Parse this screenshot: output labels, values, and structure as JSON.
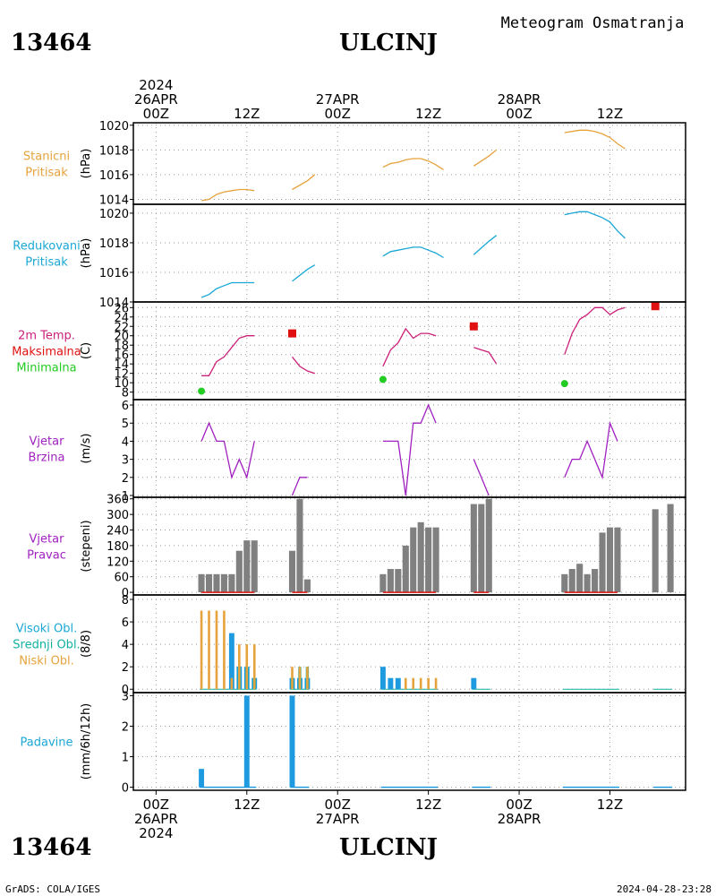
{
  "header": {
    "station_id": "13464",
    "station_name": "ULCINJ",
    "subtitle": "Meteogram Osmatranja",
    "footer_left": "GrADS: COLA/IGES",
    "footer_right": "2024-04-28-23:28"
  },
  "time_axis": {
    "ticks": [
      {
        "h": 0,
        "lines": [
          "2024",
          "26APR",
          "00Z"
        ]
      },
      {
        "h": 12,
        "lines": [
          "12Z"
        ]
      },
      {
        "h": 24,
        "lines": [
          "27APR",
          "00Z"
        ]
      },
      {
        "h": 36,
        "lines": [
          "12Z"
        ]
      },
      {
        "h": 48,
        "lines": [
          "28APR",
          "00Z"
        ]
      },
      {
        "h": 60,
        "lines": [
          "12Z"
        ]
      }
    ],
    "bottom_ticks": [
      {
        "h": 0,
        "lines": [
          "00Z",
          "26APR",
          "2024"
        ]
      },
      {
        "h": 12,
        "lines": [
          "12Z"
        ]
      },
      {
        "h": 24,
        "lines": [
          "00Z",
          "27APR"
        ]
      },
      {
        "h": 36,
        "lines": [
          "12Z"
        ]
      },
      {
        "h": 48,
        "lines": [
          "00Z",
          "28APR"
        ]
      },
      {
        "h": 60,
        "lines": [
          "12Z"
        ]
      }
    ],
    "range_hours": [
      -3,
      70
    ]
  },
  "colors": {
    "orange": "#e6a23c",
    "cyan": "#1aa7d6",
    "magenta": "#cc1f79",
    "red": "#e01010",
    "green": "#22cc22",
    "purple": "#a020c0",
    "gray": "#808080",
    "teal": "#10b0a0",
    "blue": "#1e9be0",
    "grid": "#999999"
  },
  "chart_data": [
    {
      "type": "line",
      "labels": [
        "Stanicni",
        "Pritisak"
      ],
      "ylabel": "(hPa)",
      "ylim": [
        1013.6,
        1020.2
      ],
      "yticks": [
        1014,
        1016,
        1018,
        1020
      ],
      "series": [
        {
          "color_key": "orange",
          "segments": [
            [
              [
                6,
                1013.9
              ],
              [
                7,
                1014.0
              ],
              [
                8,
                1014.4
              ],
              [
                9,
                1014.6
              ],
              [
                10,
                1014.7
              ],
              [
                11,
                1014.8
              ],
              [
                12,
                1014.8
              ],
              [
                13,
                1014.7
              ]
            ],
            [
              [
                18,
                1014.8
              ],
              [
                20,
                1015.5
              ],
              [
                21,
                1016.0
              ]
            ],
            [
              [
                30,
                1016.6
              ],
              [
                31,
                1016.9
              ],
              [
                32,
                1017.0
              ],
              [
                33,
                1017.2
              ],
              [
                34,
                1017.3
              ],
              [
                35,
                1017.3
              ],
              [
                36,
                1017.1
              ],
              [
                37,
                1016.8
              ],
              [
                38,
                1016.4
              ]
            ],
            [
              [
                42,
                1016.7
              ],
              [
                44,
                1017.5
              ],
              [
                45,
                1018.0
              ]
            ],
            [
              [
                54,
                1019.4
              ],
              [
                55,
                1019.5
              ],
              [
                56,
                1019.6
              ],
              [
                57,
                1019.6
              ],
              [
                58,
                1019.5
              ],
              [
                59,
                1019.3
              ],
              [
                60,
                1019.0
              ],
              [
                61,
                1018.5
              ],
              [
                62,
                1018.1
              ]
            ]
          ]
        }
      ]
    },
    {
      "type": "line",
      "labels": [
        "Redukovani",
        "Pritisak"
      ],
      "ylabel": "(hPa)",
      "ylim": [
        1014.0,
        1020.6
      ],
      "yticks": [
        1014,
        1016,
        1018,
        1020
      ],
      "series": [
        {
          "color_key": "cyan",
          "segments": [
            [
              [
                6,
                1014.3
              ],
              [
                7,
                1014.5
              ],
              [
                8,
                1014.9
              ],
              [
                9,
                1015.1
              ],
              [
                10,
                1015.3
              ],
              [
                11,
                1015.3
              ],
              [
                12,
                1015.3
              ],
              [
                13,
                1015.3
              ]
            ],
            [
              [
                18,
                1015.4
              ],
              [
                20,
                1016.2
              ],
              [
                21,
                1016.5
              ]
            ],
            [
              [
                30,
                1017.1
              ],
              [
                31,
                1017.4
              ],
              [
                32,
                1017.5
              ],
              [
                33,
                1017.6
              ],
              [
                34,
                1017.7
              ],
              [
                35,
                1017.7
              ],
              [
                36,
                1017.5
              ],
              [
                37,
                1017.3
              ],
              [
                38,
                1017.0
              ]
            ],
            [
              [
                42,
                1017.2
              ],
              [
                44,
                1018.1
              ],
              [
                45,
                1018.5
              ]
            ],
            [
              [
                54,
                1019.9
              ],
              [
                55,
                1020.0
              ],
              [
                56,
                1020.1
              ],
              [
                57,
                1020.1
              ],
              [
                58,
                1019.9
              ],
              [
                59,
                1019.7
              ],
              [
                60,
                1019.4
              ],
              [
                61,
                1018.8
              ],
              [
                62,
                1018.3
              ]
            ]
          ]
        }
      ]
    },
    {
      "type": "line",
      "labels": [
        "2m Temp.",
        "Maksimalna",
        "Minimalna"
      ],
      "label_colors": [
        "magenta",
        "red",
        "green"
      ],
      "ylabel": "(C)",
      "ylim": [
        6.4,
        27.2
      ],
      "yticks": [
        8,
        10,
        12,
        14,
        16,
        18,
        20,
        22,
        24,
        26
      ],
      "series": [
        {
          "color_key": "magenta",
          "segments": [
            [
              [
                6,
                11.5
              ],
              [
                7,
                11.5
              ],
              [
                8,
                14.5
              ],
              [
                9,
                15.5
              ],
              [
                10,
                17.5
              ],
              [
                11,
                19.5
              ],
              [
                12,
                20.0
              ],
              [
                13,
                20.0
              ]
            ],
            [
              [
                18,
                15.5
              ],
              [
                19,
                13.5
              ],
              [
                20,
                12.5
              ],
              [
                21,
                12.0
              ]
            ],
            [
              [
                30,
                13.5
              ],
              [
                31,
                17.0
              ],
              [
                32,
                18.5
              ],
              [
                33,
                21.5
              ],
              [
                34,
                19.5
              ],
              [
                35,
                20.5
              ],
              [
                36,
                20.5
              ],
              [
                37,
                20.0
              ]
            ],
            [
              [
                42,
                17.5
              ],
              [
                43,
                17.0
              ],
              [
                44,
                16.5
              ],
              [
                45,
                14.0
              ]
            ],
            [
              [
                54,
                16.0
              ],
              [
                55,
                20.5
              ],
              [
                56,
                23.5
              ],
              [
                57,
                24.5
              ],
              [
                58,
                26.0
              ],
              [
                59,
                26.0
              ],
              [
                60,
                24.5
              ],
              [
                61,
                25.5
              ],
              [
                62,
                26.0
              ]
            ]
          ]
        }
      ],
      "max_points": [
        [
          18,
          20.5
        ],
        [
          42,
          22.0
        ],
        [
          66,
          26.3
        ]
      ],
      "min_points": [
        [
          6,
          8.2
        ],
        [
          30,
          10.7
        ],
        [
          54,
          9.8
        ]
      ]
    },
    {
      "type": "line",
      "labels": [
        "Vjetar",
        "Brzina"
      ],
      "ylabel": "(m/s)",
      "ylim": [
        0.9,
        6.3
      ],
      "yticks": [
        1,
        2,
        3,
        4,
        5,
        6
      ],
      "series": [
        {
          "color_key": "purple",
          "segments": [
            [
              [
                6,
                4
              ],
              [
                7,
                5
              ],
              [
                8,
                4
              ],
              [
                9,
                4
              ],
              [
                10,
                2
              ],
              [
                11,
                3
              ],
              [
                12,
                2
              ],
              [
                13,
                4
              ]
            ],
            [
              [
                18,
                1
              ],
              [
                19,
                2
              ],
              [
                20,
                2
              ]
            ],
            [
              [
                30,
                4
              ],
              [
                31,
                4
              ],
              [
                32,
                4
              ],
              [
                33,
                1
              ],
              [
                34,
                5
              ],
              [
                35,
                5
              ],
              [
                36,
                6
              ],
              [
                37,
                5
              ]
            ],
            [
              [
                42,
                3
              ],
              [
                43,
                2
              ],
              [
                44,
                1
              ]
            ],
            [
              [
                54,
                2
              ],
              [
                55,
                3
              ],
              [
                56,
                3
              ],
              [
                57,
                4
              ],
              [
                58,
                3
              ],
              [
                59,
                2
              ],
              [
                60,
                5
              ],
              [
                61,
                4
              ]
            ]
          ]
        }
      ]
    },
    {
      "type": "bar",
      "labels": [
        "Vjetar",
        "Pravac"
      ],
      "ylabel": "(stepeni)",
      "ylim": [
        -10,
        366
      ],
      "yticks": [
        0,
        60,
        120,
        180,
        240,
        300,
        360
      ],
      "bars": [
        [
          6,
          70
        ],
        [
          7,
          70
        ],
        [
          8,
          70
        ],
        [
          9,
          70
        ],
        [
          10,
          70
        ],
        [
          11,
          160
        ],
        [
          12,
          200
        ],
        [
          13,
          200
        ],
        [
          18,
          160
        ],
        [
          19,
          360
        ],
        [
          20,
          50
        ],
        [
          30,
          70
        ],
        [
          31,
          90
        ],
        [
          32,
          90
        ],
        [
          33,
          180
        ],
        [
          34,
          250
        ],
        [
          35,
          270
        ],
        [
          36,
          250
        ],
        [
          37,
          250
        ],
        [
          42,
          340
        ],
        [
          43,
          340
        ],
        [
          44,
          360
        ],
        [
          54,
          70
        ],
        [
          55,
          90
        ],
        [
          56,
          110
        ],
        [
          57,
          70
        ],
        [
          58,
          90
        ],
        [
          59,
          230
        ],
        [
          60,
          250
        ],
        [
          61,
          250
        ],
        [
          66,
          320
        ],
        [
          68,
          340
        ]
      ],
      "zero_marks": [
        [
          6,
          13
        ],
        [
          18,
          20
        ],
        [
          30,
          37
        ],
        [
          42,
          44
        ],
        [
          54,
          61
        ]
      ]
    },
    {
      "type": "bar",
      "labels": [
        "Visoki Obl.",
        "Srednji Obl.",
        "Niski Obl."
      ],
      "label_colors": [
        "cyan",
        "teal",
        "orange"
      ],
      "ylabel": "(8/8)",
      "ylim": [
        -0.3,
        8.4
      ],
      "yticks": [
        0,
        2,
        4,
        6,
        8
      ],
      "visoki": [
        [
          10,
          5
        ],
        [
          11,
          2
        ],
        [
          12,
          2
        ],
        [
          13,
          1
        ],
        [
          18,
          1
        ],
        [
          19,
          1
        ],
        [
          20,
          1
        ],
        [
          30,
          2
        ],
        [
          31,
          1
        ],
        [
          32,
          1
        ],
        [
          42,
          1
        ]
      ],
      "srednji": [
        [
          11,
          2
        ],
        [
          12,
          2
        ],
        [
          13,
          1
        ],
        [
          18,
          1
        ],
        [
          19,
          2
        ],
        [
          20,
          2
        ]
      ],
      "niski": [
        [
          6,
          7
        ],
        [
          7,
          7
        ],
        [
          8,
          7
        ],
        [
          9,
          7
        ],
        [
          10,
          1
        ],
        [
          11,
          4
        ],
        [
          12,
          4
        ],
        [
          13,
          4
        ],
        [
          18,
          2
        ],
        [
          19,
          2
        ],
        [
          20,
          2
        ],
        [
          33,
          1
        ],
        [
          34,
          1
        ],
        [
          35,
          1
        ],
        [
          36,
          1
        ],
        [
          37,
          1
        ]
      ],
      "trace_ranges": [
        [
          6,
          13
        ],
        [
          18,
          20
        ],
        [
          30,
          37
        ],
        [
          42,
          44
        ],
        [
          54,
          61
        ],
        [
          66,
          68
        ]
      ]
    },
    {
      "type": "bar",
      "labels": [
        "Padavine"
      ],
      "label_colors": [
        "cyan"
      ],
      "ylabel": "(mm/6h/12h)",
      "ylim": [
        -0.1,
        3.1
      ],
      "yticks": [
        0,
        1,
        2,
        3
      ],
      "bars": [
        [
          6,
          0.6
        ],
        [
          12,
          3.0
        ],
        [
          18,
          3.0
        ]
      ],
      "trace_ranges": [
        [
          6,
          13
        ],
        [
          18,
          20
        ],
        [
          30,
          37
        ],
        [
          42,
          44
        ],
        [
          54,
          61
        ],
        [
          66,
          68
        ]
      ]
    }
  ]
}
